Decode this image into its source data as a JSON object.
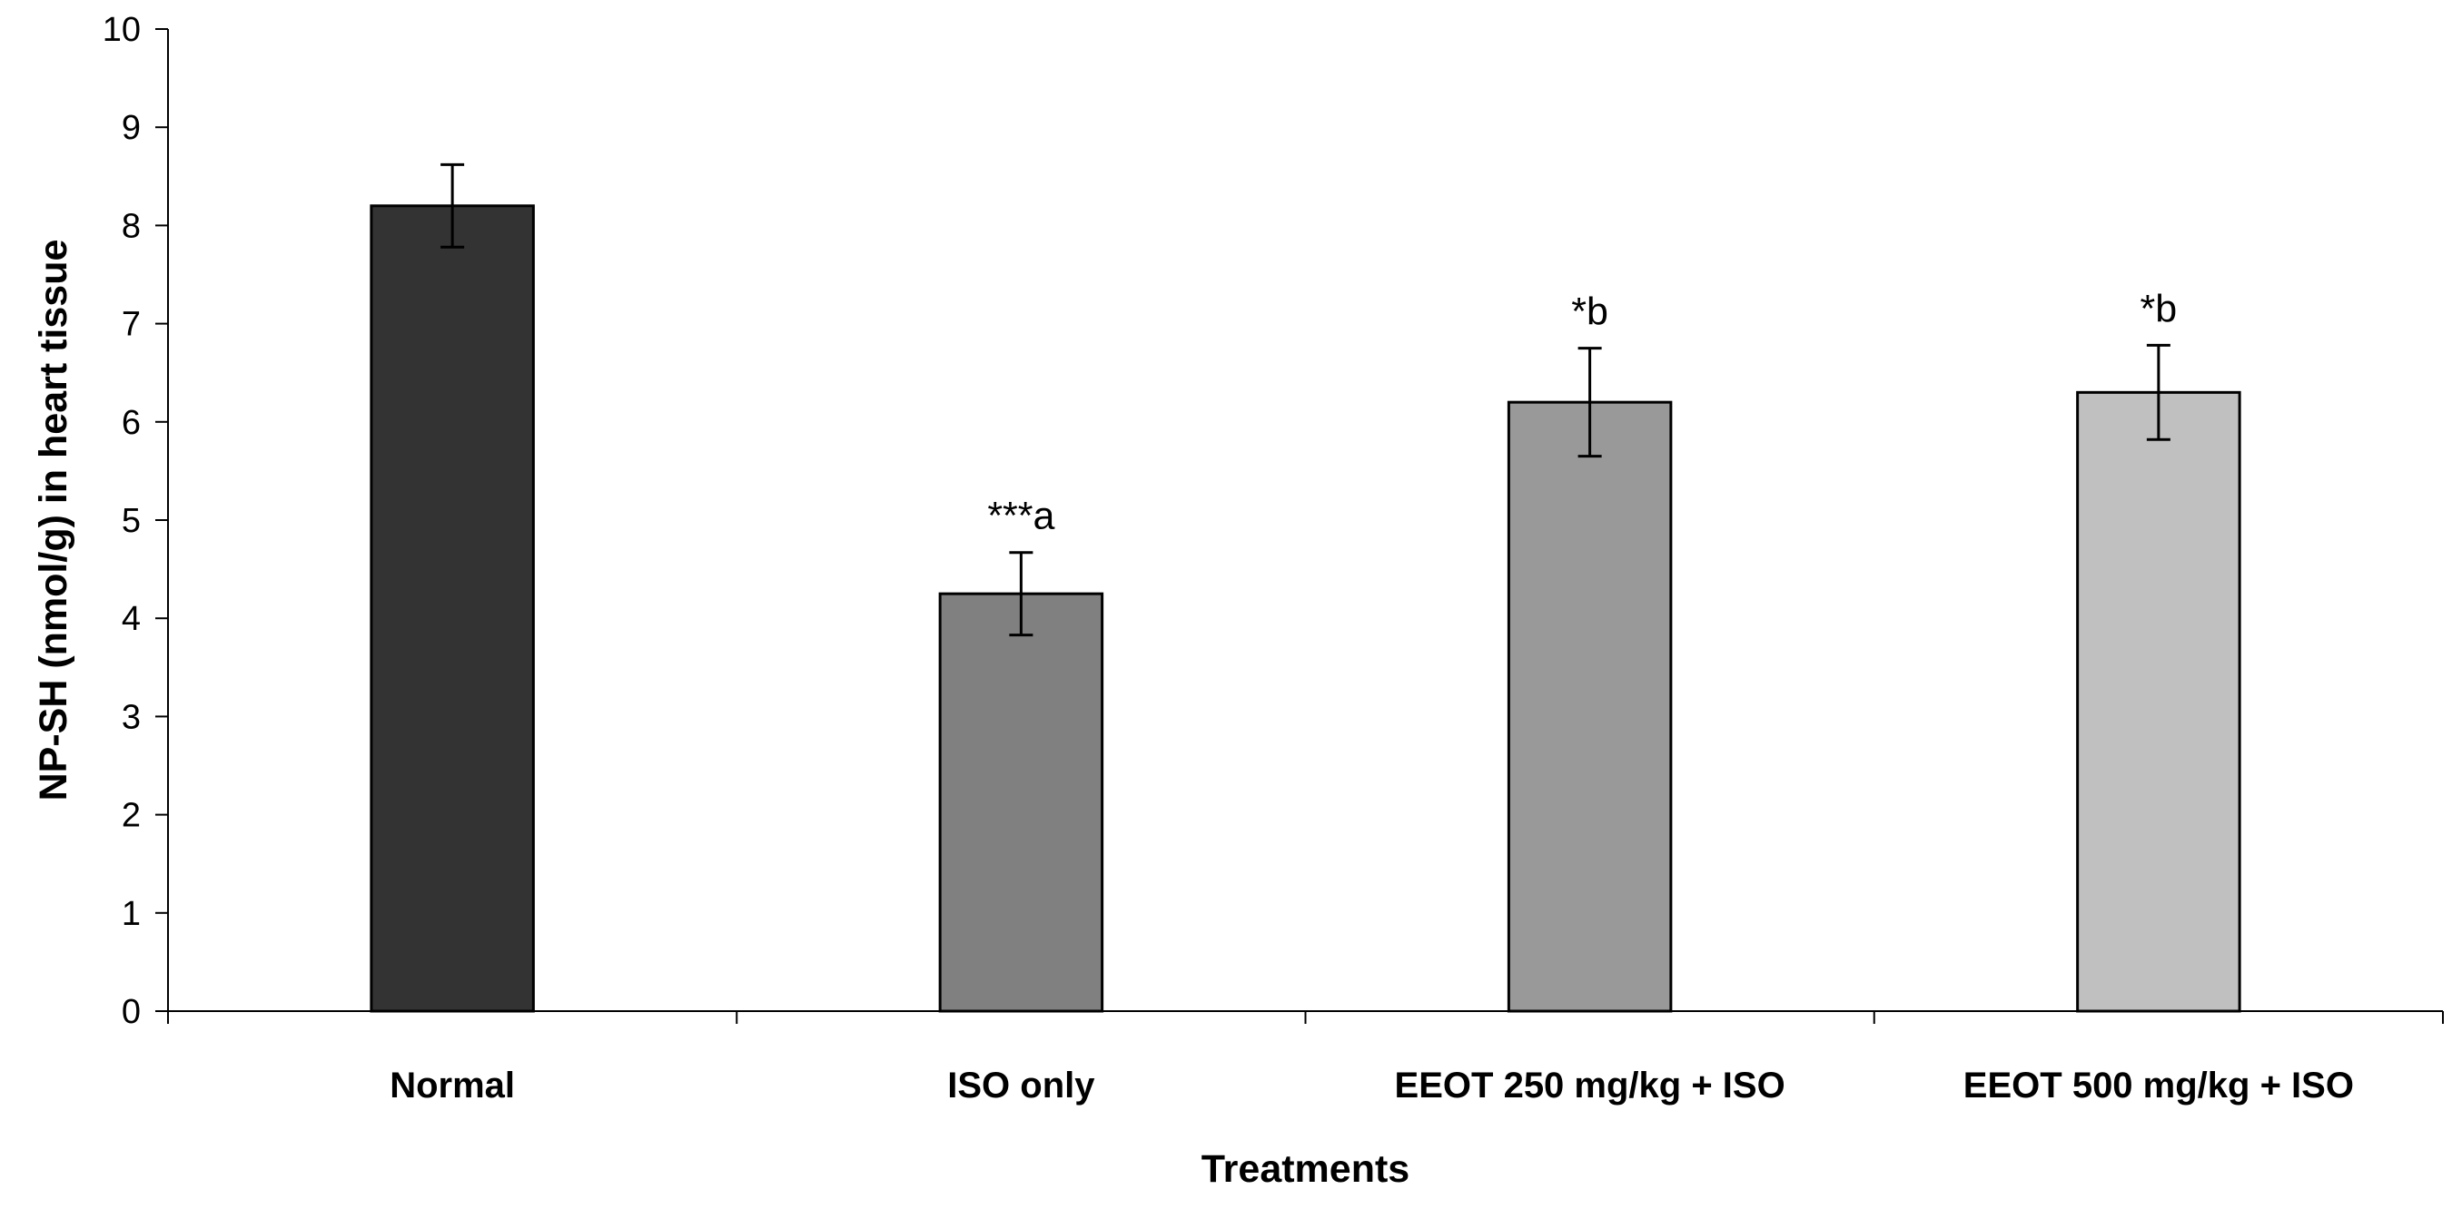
{
  "chart_data": {
    "type": "bar",
    "title": "",
    "xlabel": "Treatments",
    "ylabel": "NP-SH (nmol/g) in heart tissue",
    "ylim": [
      0,
      10
    ],
    "yticks": [
      0,
      1,
      2,
      3,
      4,
      5,
      6,
      7,
      8,
      9,
      10
    ],
    "grid": false,
    "categories": [
      "Normal",
      "ISO only",
      "EEOT 250 mg/kg + ISO",
      "EEOT 500 mg/kg + ISO"
    ],
    "values": [
      8.2,
      4.25,
      6.2,
      6.3
    ],
    "errors": [
      0.42,
      0.42,
      0.55,
      0.48
    ],
    "annotations": [
      "",
      "***a",
      "*b",
      "*b"
    ],
    "colors": [
      "#333333",
      "#808080",
      "#999999",
      "#c0c0c0"
    ]
  }
}
